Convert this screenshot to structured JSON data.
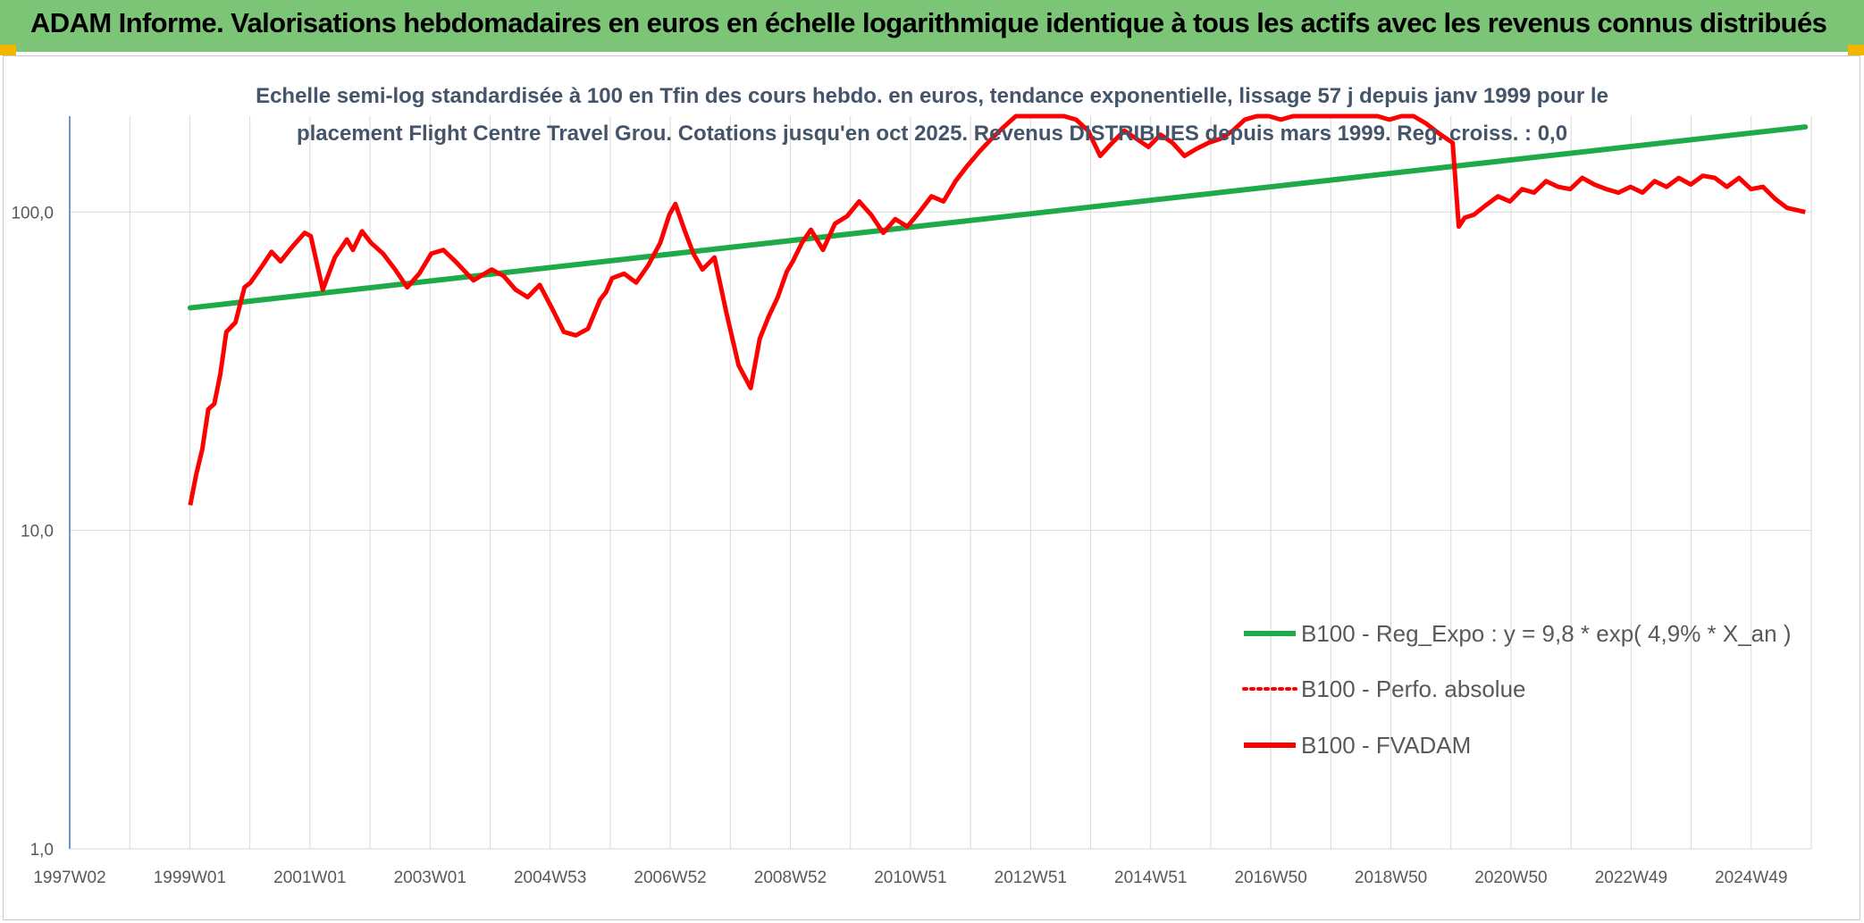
{
  "banner": {
    "title": "ADAM Informe. Valorisations hebdomadaires en euros en échelle logarithmique identique à tous les actifs avec les revenus connus distribués"
  },
  "colors": {
    "banner_bg": "#7cc576",
    "corner": "#f2b600",
    "trend": "#1faa4a",
    "fvadam": "#ff0000",
    "grid": "#d9d9d9",
    "axis": "#4472c4"
  },
  "chart_data": {
    "type": "line",
    "subtitle_line1": "Echelle semi-log standardisée à 100 en Tfin des cours hebdo. en euros, tendance exponentielle, lissage 57 j depuis janv 1999 pour le",
    "subtitle_line2": "placement Flight Centre Travel Grou. Cotations jusqu'en oct 2025. Revenus DISTRIBUES depuis mars 1999. Reg. croiss. : 0,0",
    "y_scale": "log",
    "ylim": [
      1,
      200
    ],
    "y_ticks": [
      "1,0",
      "10,0",
      "100,0"
    ],
    "xlim": [
      1997.0,
      2025.9
    ],
    "x_ticks": [
      "1997W02",
      "1999W01",
      "2001W01",
      "2003W01",
      "2004W53",
      "2006W52",
      "2008W52",
      "2010W51",
      "2012W51",
      "2014W51",
      "2016W50",
      "2018W50",
      "2020W50",
      "2022W49",
      "2024W49"
    ],
    "grid": true,
    "legend_position": "right-middle",
    "series": [
      {
        "name": "B100 - Reg_Expo : y = 9,8 * exp( 4,9% *  X_an )",
        "style": "solid",
        "x": [
          1999.0,
          2025.8
        ],
        "y": [
          50,
          185
        ]
      },
      {
        "name": "B100 - Perfo. absolue",
        "style": "dotted",
        "x": [],
        "y": []
      },
      {
        "name": "B100 - FVADAM",
        "style": "solid",
        "x": [
          1999.0,
          1999.1,
          1999.2,
          1999.3,
          1999.4,
          1999.5,
          1999.6,
          1999.75,
          1999.9,
          2000.0,
          2000.2,
          2000.35,
          2000.5,
          2000.7,
          2000.9,
          2001.0,
          2001.2,
          2001.4,
          2001.6,
          2001.7,
          2001.85,
          2002.0,
          2002.2,
          2002.4,
          2002.6,
          2002.8,
          2003.0,
          2003.2,
          2003.4,
          2003.7,
          2004.0,
          2004.2,
          2004.4,
          2004.6,
          2004.8,
          2005.0,
          2005.2,
          2005.4,
          2005.6,
          2005.8,
          2005.9,
          2006.0,
          2006.2,
          2006.4,
          2006.6,
          2006.8,
          2006.95,
          2007.05,
          2007.2,
          2007.35,
          2007.5,
          2007.7,
          2007.9,
          2008.1,
          2008.3,
          2008.45,
          2008.6,
          2008.75,
          2008.9,
          2009.0,
          2009.15,
          2009.3,
          2009.5,
          2009.7,
          2009.9,
          2010.1,
          2010.3,
          2010.5,
          2010.7,
          2010.9,
          2011.1,
          2011.3,
          2011.5,
          2011.7,
          2011.9,
          2012.1,
          2012.3,
          2012.5,
          2012.7,
          2012.9,
          2013.1,
          2013.3,
          2013.5,
          2013.7,
          2013.9,
          2014.1,
          2014.3,
          2014.5,
          2014.7,
          2014.9,
          2015.1,
          2015.3,
          2015.5,
          2015.7,
          2015.9,
          2016.1,
          2016.3,
          2016.5,
          2016.7,
          2016.9,
          2017.1,
          2017.3,
          2017.5,
          2017.7,
          2017.9,
          2018.1,
          2018.3,
          2018.5,
          2018.7,
          2018.9,
          2019.1,
          2019.3,
          2019.5,
          2019.75,
          2019.95,
          2020.05,
          2020.15,
          2020.3,
          2020.5,
          2020.7,
          2020.9,
          2021.1,
          2021.3,
          2021.5,
          2021.7,
          2021.9,
          2022.1,
          2022.3,
          2022.5,
          2022.7,
          2022.9,
          2023.1,
          2023.3,
          2023.5,
          2023.7,
          2023.9,
          2024.1,
          2024.3,
          2024.5,
          2024.7,
          2024.9,
          2025.1,
          2025.3,
          2025.5,
          2025.8
        ],
        "y": [
          12,
          15,
          18,
          24,
          25,
          31,
          42,
          45,
          58,
          60,
          68,
          75,
          70,
          78,
          86,
          84,
          57,
          72,
          82,
          76,
          87,
          80,
          74,
          66,
          58,
          64,
          74,
          76,
          70,
          61,
          66,
          63,
          57,
          54,
          59,
          50,
          42,
          41,
          43,
          53,
          56,
          62,
          64,
          60,
          68,
          80,
          98,
          106,
          88,
          74,
          66,
          72,
          48,
          33,
          28,
          40,
          47,
          54,
          65,
          70,
          80,
          88,
          76,
          92,
          97,
          108,
          98,
          86,
          95,
          90,
          100,
          112,
          108,
          125,
          140,
          155,
          170,
          185,
          200,
          215,
          205,
          230,
          210,
          195,
          180,
          150,
          165,
          180,
          170,
          160,
          175,
          165,
          150,
          158,
          165,
          170,
          180,
          195,
          205,
          200,
          195,
          210,
          215,
          200,
          210,
          200,
          200,
          205,
          200,
          195,
          200,
          205,
          190,
          175,
          165,
          90,
          96,
          98,
          105,
          112,
          108,
          118,
          115,
          125,
          120,
          118,
          128,
          122,
          118,
          115,
          120,
          115,
          125,
          120,
          128,
          122,
          130,
          128,
          120,
          128,
          118,
          120,
          110,
          103,
          100
        ]
      }
    ]
  }
}
